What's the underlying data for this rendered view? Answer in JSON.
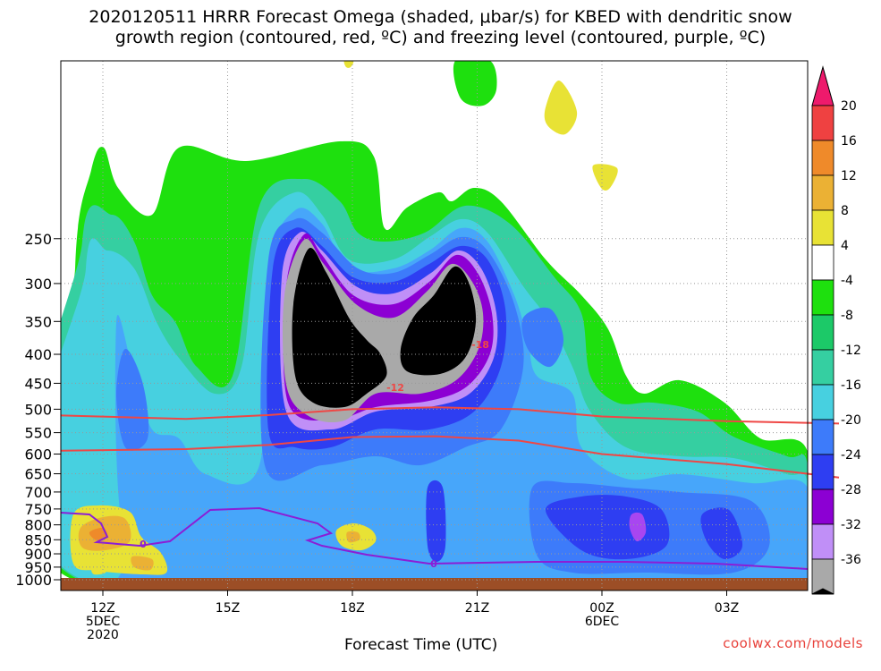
{
  "colors": {
    "black": "#000000",
    "gray": "#a9a9a9",
    "purple_dark": "#8c00d3",
    "purple": "#a846f0",
    "violet": "#c08ff7",
    "blue": "#2e3ef2",
    "blue_mid": "#3d7bfa",
    "blue_light": "#47a6fa",
    "teal": "#47d0e0",
    "teal_green": "#35cfa1",
    "green": "#1cc968",
    "green_bright": "#1ee00e",
    "yellow": "#e8e235",
    "gold": "#ebb134",
    "orange": "#ef8a2a",
    "red": "#ef4141",
    "magenta": "#ee1a6c",
    "ground": "#9c4e26",
    "dsgz": "#ef4745",
    "freeze": "#8b1ed6"
  },
  "chart_data": {
    "type": "heatmap",
    "title_line1": "2020120511 HRRR Forecast Omega (shaded, μbar/s) for KBED with dendritic snow",
    "title_line2": "growth region (contoured, red, ºC) and freezing level (contoured, purple, ºC)",
    "xlabel": "Forecast Time (UTC)",
    "credit": "coolwx.com/models",
    "y_ticks": [
      "250",
      "300",
      "350",
      "400",
      "450",
      "500",
      "550",
      "600",
      "650",
      "700",
      "750",
      "800",
      "850",
      "900",
      "950",
      "1000"
    ],
    "x_ticks": [
      {
        "label": "12Z",
        "sub1": "5DEC",
        "sub2": "2020",
        "hour": 0
      },
      {
        "label": "15Z",
        "sub1": "",
        "sub2": "",
        "hour": 3
      },
      {
        "label": "18Z",
        "sub1": "",
        "sub2": "",
        "hour": 6
      },
      {
        "label": "21Z",
        "sub1": "",
        "sub2": "",
        "hour": 9
      },
      {
        "label": "00Z",
        "sub1": "6DEC",
        "sub2": "",
        "hour": 12
      },
      {
        "label": "03Z",
        "sub1": "",
        "sub2": "",
        "hour": 15
      }
    ],
    "colorbar_labels": [
      "20",
      "16",
      "12",
      "8",
      "4",
      "-4",
      "-8",
      "-12",
      "-16",
      "-20",
      "-24",
      "-28",
      "-32",
      "-36"
    ],
    "contour_labels": {
      "dsgz_upper": "-18",
      "dsgz_lower": "-12",
      "freezing": "0"
    },
    "dsgz_upper_hpa": [
      [
        -1,
        513
      ],
      [
        2,
        520
      ],
      [
        4,
        512
      ],
      [
        6,
        500
      ],
      [
        8,
        496
      ],
      [
        10,
        500
      ],
      [
        12,
        515
      ],
      [
        15,
        525
      ],
      [
        17.7,
        530
      ]
    ],
    "dsgz_lower_hpa": [
      [
        -1,
        592
      ],
      [
        2,
        588
      ],
      [
        4,
        578
      ],
      [
        6,
        560
      ],
      [
        8,
        558
      ],
      [
        10,
        568
      ],
      [
        12,
        600
      ],
      [
        15,
        625
      ],
      [
        17.7,
        660
      ]
    ]
  }
}
